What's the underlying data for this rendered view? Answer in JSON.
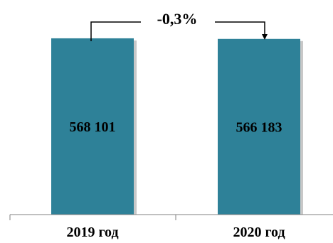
{
  "chart_data": {
    "type": "bar",
    "categories": [
      "2019 год",
      "2020 год"
    ],
    "values": [
      568101,
      566183
    ],
    "value_labels": [
      "568 101",
      "566 183"
    ],
    "change_label": "-0,3%",
    "bar_color": "#2e8198",
    "ylim": [
      0,
      600000
    ],
    "grid": false,
    "legend": "none"
  }
}
